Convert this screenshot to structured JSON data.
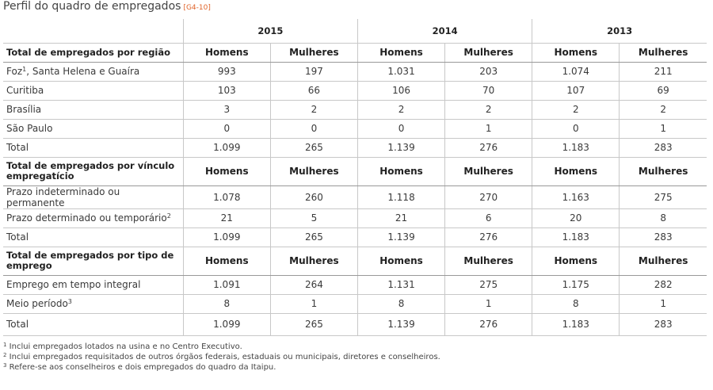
{
  "title": "Perfil do quadro de empregados",
  "tag": "[G4-10]",
  "years": [
    "2015",
    "2014",
    "2013"
  ],
  "men": "Homens",
  "women": "Mulheres",
  "sections": [
    {
      "header": "Total de empregados por região",
      "rows": [
        {
          "label": "Foz",
          "sup": "1",
          "label_after": ", Santa Helena e Guaíra",
          "values": [
            "993",
            "197",
            "1.031",
            "203",
            "1.074",
            "211"
          ]
        },
        {
          "label": "Curitiba",
          "values": [
            "103",
            "66",
            "106",
            "70",
            "107",
            "69"
          ]
        },
        {
          "label": "Brasília",
          "values": [
            "3",
            "2",
            "2",
            "2",
            "2",
            "2"
          ]
        },
        {
          "label": "São Paulo",
          "values": [
            "0",
            "0",
            "0",
            "1",
            "0",
            "1"
          ]
        },
        {
          "label": "Total",
          "values": [
            "1.099",
            "265",
            "1.139",
            "276",
            "1.183",
            "283"
          ]
        }
      ]
    },
    {
      "header": "Total de empregados por vínculo empregatício",
      "rows": [
        {
          "label": "Prazo indeterminado ou permanente",
          "values": [
            "1.078",
            "260",
            "1.118",
            "270",
            "1.163",
            "275"
          ]
        },
        {
          "label": "Prazo determinado ou temporário",
          "sup": "2",
          "values": [
            "21",
            "5",
            "21",
            "6",
            "20",
            "8"
          ]
        },
        {
          "label": "Total",
          "values": [
            "1.099",
            "265",
            "1.139",
            "276",
            "1.183",
            "283"
          ]
        }
      ]
    },
    {
      "header": "Total de empregados por tipo de emprego",
      "rows": [
        {
          "label": "Emprego em tempo integral",
          "values": [
            "1.091",
            "264",
            "1.131",
            "275",
            "1.175",
            "282"
          ]
        },
        {
          "label": "Meio período",
          "sup": "3",
          "values": [
            "8",
            "1",
            "8",
            "1",
            "8",
            "1"
          ]
        },
        {
          "label": "Total",
          "values": [
            "1.099",
            "265",
            "1.139",
            "276",
            "1.183",
            "283"
          ]
        }
      ]
    }
  ],
  "notes": [
    {
      "num": "1",
      "text": "Inclui empregados lotados na usina e no Centro Executivo."
    },
    {
      "num": "2",
      "text": "Inclui empregados requisitados de outros órgãos federais, estaduais ou municipais, diretores e conselheiros."
    },
    {
      "num": "3",
      "text": "Refere-se aos conselheiros e dois empregados do quadro da Itaipu."
    }
  ]
}
